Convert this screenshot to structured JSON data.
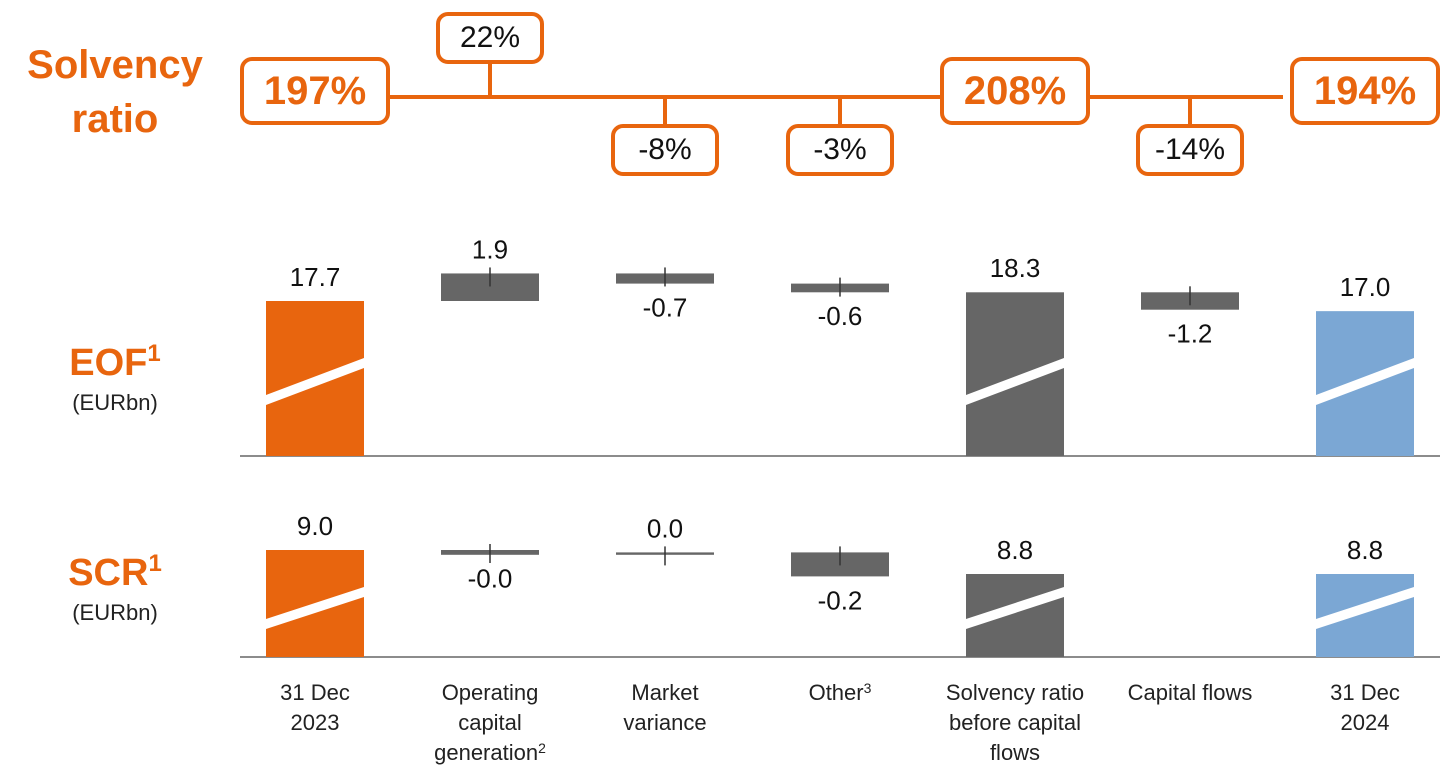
{
  "chart_data": {
    "type": "waterfall",
    "categories": [
      "31 Dec 2023",
      "Operating capital generation",
      "Market variance",
      "Other",
      "Solvency ratio before capital flows",
      "Capital flows",
      "31 Dec 2024"
    ],
    "category_notes": [
      null,
      "2",
      null,
      "3",
      null,
      null,
      null
    ],
    "measure": [
      "absolute",
      "relative",
      "relative",
      "relative",
      "total",
      "relative",
      "total"
    ],
    "colors": [
      "#e8650e",
      "#666666",
      "#666666",
      "#666666",
      "#666666",
      "#666666",
      "#7ba7d4"
    ],
    "solvency_ratio": {
      "title": "Solvency ratio",
      "color": "#e8650e",
      "values": [
        197,
        22,
        -8,
        -3,
        208,
        -14,
        194
      ],
      "value_labels": [
        "197%",
        "22%",
        "-8%",
        "-3%",
        "208%",
        "-14%",
        "194%"
      ]
    },
    "series": [
      {
        "name": "EOF",
        "note": "1",
        "unit": "(EURbn)",
        "color": "#e8650e",
        "values": [
          17.7,
          1.9,
          -0.7,
          -0.6,
          18.3,
          -1.2,
          17.0
        ],
        "value_labels": [
          "17.7",
          "1.9",
          "-0.7",
          "-0.6",
          "18.3",
          "-1.2",
          "17.0"
        ]
      },
      {
        "name": "SCR",
        "note": "1",
        "unit": "(EURbn)",
        "color": "#e8650e",
        "values": [
          9.0,
          -0.04,
          0.02,
          -0.2,
          8.8,
          null,
          8.8
        ],
        "value_labels": [
          "9.0",
          "-0.0",
          "0.0",
          "-0.2",
          "8.8",
          null,
          "8.8"
        ]
      }
    ]
  }
}
